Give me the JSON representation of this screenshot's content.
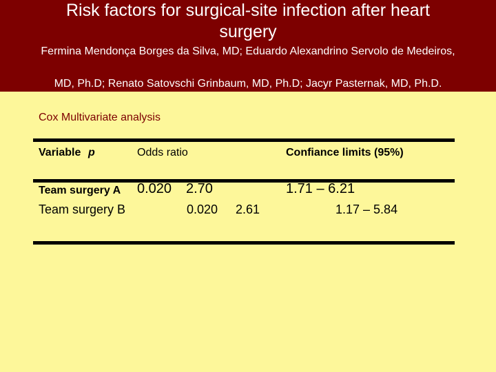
{
  "header": {
    "title_line1": "Risk factors for surgical-site infection after heart",
    "title_line2": "surgery",
    "authors_line1": "Fermina Mendonça Borges da Silva, MD; Eduardo Alexandrino Servolo de Medeiros,",
    "authors_line2": "MD, Ph.D; Renato Satovschi Grinbaum, MD, Ph.D; Jacyr Pasternak, MD, Ph.D."
  },
  "section": {
    "title": "Cox Multivariate analysis"
  },
  "table": {
    "headers": {
      "variable": "Variable",
      "p": "p",
      "odds_ratio": "Odds ratio",
      "confidence": "Confiance limits (95%)"
    },
    "rows": [
      {
        "variable": "Team surgery A",
        "p": "0.020",
        "odds_ratio": "2.70",
        "confidence": "1.71 – 6.21"
      },
      {
        "variable": "Team surgery B",
        "p": "0.020",
        "odds_ratio": "2.61",
        "confidence": "1.17 – 5.84"
      }
    ]
  },
  "colors": {
    "header_bg": "#7d0000",
    "page_bg": "#fdf79a",
    "header_text": "#ffffff",
    "accent_text": "#7d0000"
  }
}
